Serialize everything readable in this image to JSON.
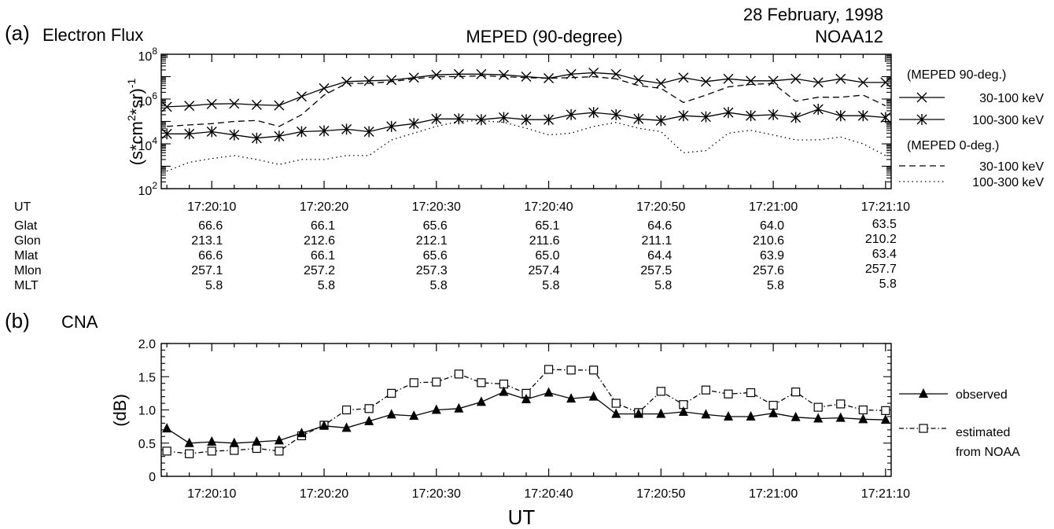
{
  "header": {
    "date": "28 February, 1998",
    "satellite": "NOAA12"
  },
  "chart_data": [
    {
      "type": "line",
      "panel_label": "(a)",
      "panel_name": "Electron Flux",
      "title": "MEPED (90-degree)",
      "ylabel": "(s*cm2*sr)-1",
      "ylabel_parts": {
        "base": "(s*cm",
        "sup1": "2",
        "mid": "*sr)",
        "sup2": "-1"
      },
      "yscale": "log",
      "ylim": [
        100,
        100000000
      ],
      "yticks": [
        {
          "value": 100,
          "base": "10",
          "exp": "2"
        },
        {
          "value": 10000,
          "base": "10",
          "exp": "4"
        },
        {
          "value": 1000000,
          "base": "10",
          "exp": "6"
        },
        {
          "value": 100000000,
          "base": "10",
          "exp": "8"
        }
      ],
      "xlim": [
        5.5,
        70.5
      ],
      "xticks": [
        10,
        20,
        30,
        40,
        50,
        60,
        70
      ],
      "xtick_labels": [
        "17:20:10",
        "17:20:20",
        "17:20:30",
        "17:20:40",
        "17:20:50",
        "17:21:00",
        "17:21:10"
      ],
      "legend_groups": [
        {
          "title": "(MEPED 90-deg.)",
          "entries": [
            "30-100 keV",
            "100-300 keV"
          ]
        },
        {
          "title": "(MEPED  0-deg.)",
          "entries": [
            "30-100 keV",
            "100-300 keV"
          ]
        }
      ],
      "series": [
        {
          "name": "30-100 keV",
          "group": "MEPED 90-deg.",
          "style": "solid",
          "marker": "x",
          "x": [
            6,
            8,
            10,
            12,
            14,
            16,
            18,
            20,
            22,
            24,
            26,
            28,
            30,
            32,
            34,
            36,
            38,
            40,
            42,
            44,
            46,
            48,
            50,
            52,
            54,
            56,
            58,
            60,
            62,
            64,
            66,
            68,
            70
          ],
          "y": [
            450000,
            500000,
            600000,
            620000,
            550000,
            520000,
            1300000,
            3000000,
            6000000,
            6500000,
            7000000,
            9000000,
            12000000,
            13000000,
            13000000,
            12000000,
            10000000,
            8500000,
            13000000,
            15000000,
            13000000,
            7000000,
            5000000,
            9000000,
            6000000,
            8000000,
            6500000,
            6500000,
            8000000,
            5500000,
            8000000,
            5500000,
            5500000
          ]
        },
        {
          "name": "100-300 keV",
          "group": "MEPED 90-deg.",
          "style": "solid",
          "marker": "asterisk",
          "x": [
            6,
            8,
            10,
            12,
            14,
            16,
            18,
            20,
            22,
            24,
            26,
            28,
            30,
            32,
            34,
            36,
            38,
            40,
            42,
            44,
            46,
            48,
            50,
            52,
            54,
            56,
            58,
            60,
            62,
            64,
            66,
            68,
            70
          ],
          "y": [
            28000,
            28000,
            35000,
            25000,
            18000,
            22000,
            35000,
            38000,
            45000,
            35000,
            60000,
            80000,
            130000,
            130000,
            120000,
            150000,
            120000,
            120000,
            200000,
            250000,
            200000,
            130000,
            110000,
            180000,
            160000,
            250000,
            180000,
            200000,
            150000,
            350000,
            180000,
            180000,
            150000
          ]
        },
        {
          "name": "30-100 keV",
          "group": "MEPED 0-deg.",
          "style": "dashed",
          "marker": "none",
          "x": [
            6,
            8,
            10,
            12,
            14,
            16,
            18,
            20,
            22,
            24,
            26,
            28,
            30,
            32,
            34,
            36,
            38,
            40,
            42,
            44,
            46,
            48,
            50,
            52,
            54,
            56,
            58,
            60,
            62,
            64,
            66,
            68,
            70
          ],
          "y": [
            60000,
            70000,
            80000,
            100000,
            110000,
            60000,
            200000,
            1500000,
            5000000,
            5000000,
            6000000,
            8000000,
            10000000,
            10000000,
            11000000,
            10000000,
            9000000,
            8500000,
            9000000,
            10000000,
            8000000,
            4000000,
            3000000,
            700000,
            1500000,
            3500000,
            4500000,
            5000000,
            800000,
            1200000,
            1200000,
            1500000,
            500000
          ]
        },
        {
          "name": "100-300 keV",
          "group": "MEPED 0-deg.",
          "style": "dotted",
          "marker": "none",
          "x": [
            6,
            8,
            10,
            12,
            14,
            16,
            18,
            20,
            22,
            24,
            26,
            28,
            30,
            32,
            34,
            36,
            38,
            40,
            42,
            44,
            46,
            48,
            50,
            52,
            54,
            56,
            58,
            60,
            62,
            64,
            66,
            68,
            70
          ],
          "y": [
            600,
            1500,
            2200,
            3000,
            2000,
            1200,
            2000,
            2000,
            3000,
            3000,
            15000,
            30000,
            60000,
            100000,
            110000,
            90000,
            50000,
            25000,
            30000,
            60000,
            90000,
            50000,
            35000,
            4000,
            5000,
            30000,
            40000,
            25000,
            15000,
            15000,
            20000,
            10000,
            3000
          ]
        }
      ],
      "table": {
        "row_labels": [
          "UT",
          "Glat",
          "Glon",
          "Mlat",
          "Mlon",
          "MLT"
        ],
        "columns": [
          [
            "17:20:10",
            "66.6",
            "213.1",
            "66.6",
            "257.1",
            "5.8"
          ],
          [
            "17:20:20",
            "66.1",
            "212.6",
            "66.1",
            "257.2",
            "5.8"
          ],
          [
            "17:20:30",
            "65.6",
            "212.1",
            "65.6",
            "257.3",
            "5.8"
          ],
          [
            "17:20:40",
            "65.1",
            "211.6",
            "65.0",
            "257.4",
            "5.8"
          ],
          [
            "17:20:50",
            "64.6",
            "211.1",
            "64.4",
            "257.5",
            "5.8"
          ],
          [
            "17:21:00",
            "64.0",
            "210.6",
            "63.9",
            "257.6",
            "5.8"
          ],
          [
            "17:21:10",
            "63.5",
            "210.2",
            "63.4",
            "257.7",
            "5.8"
          ]
        ]
      }
    },
    {
      "type": "line",
      "panel_label": "(b)",
      "panel_name": "CNA",
      "ylabel": "(dB)",
      "xlabel": "UT",
      "ylim": [
        0,
        2.0
      ],
      "yticks": [
        0,
        0.5,
        1.0,
        1.5,
        2.0
      ],
      "ytick_labels": [
        "0",
        "0.5",
        "1.0",
        "1.5",
        "2.0"
      ],
      "xlim": [
        5.5,
        70.5
      ],
      "xticks": [
        10,
        20,
        30,
        40,
        50,
        60,
        70
      ],
      "xtick_labels": [
        "17:20:10",
        "17:20:20",
        "17:20:30",
        "17:20:40",
        "17:20:50",
        "17:21:00",
        "17:21:10"
      ],
      "series": [
        {
          "name": "observed",
          "style": "solid",
          "marker": "filled-triangle",
          "x": [
            6,
            8,
            10,
            12,
            14,
            16,
            18,
            20,
            22,
            24,
            26,
            28,
            30,
            32,
            34,
            36,
            38,
            40,
            42,
            44,
            46,
            48,
            50,
            52,
            54,
            56,
            58,
            60,
            62,
            64,
            66,
            68,
            70
          ],
          "y": [
            0.72,
            0.5,
            0.52,
            0.5,
            0.52,
            0.54,
            0.65,
            0.76,
            0.73,
            0.83,
            0.93,
            0.91,
            1.0,
            1.02,
            1.12,
            1.27,
            1.16,
            1.26,
            1.17,
            1.2,
            0.94,
            0.94,
            0.94,
            0.97,
            0.93,
            0.9,
            0.9,
            0.95,
            0.89,
            0.87,
            0.88,
            0.86,
            0.85
          ]
        },
        {
          "name": "estimated\nfrom NOAA",
          "legend_lines": [
            "estimated",
            "from NOAA"
          ],
          "style": "dashdot",
          "marker": "open-square",
          "x": [
            6,
            8,
            10,
            12,
            14,
            16,
            18,
            20,
            22,
            24,
            26,
            28,
            30,
            32,
            34,
            36,
            38,
            40,
            42,
            44,
            46,
            48,
            50,
            52,
            54,
            56,
            58,
            60,
            62,
            64,
            66,
            68,
            70
          ],
          "y": [
            0.38,
            0.34,
            0.38,
            0.39,
            0.42,
            0.38,
            0.61,
            0.77,
            1.0,
            1.02,
            1.25,
            1.41,
            1.42,
            1.54,
            1.41,
            1.39,
            1.25,
            1.61,
            1.6,
            1.6,
            1.1,
            0.96,
            1.28,
            1.08,
            1.3,
            1.24,
            1.26,
            1.07,
            1.27,
            1.04,
            1.09,
            1.0,
            0.99
          ]
        }
      ]
    }
  ]
}
